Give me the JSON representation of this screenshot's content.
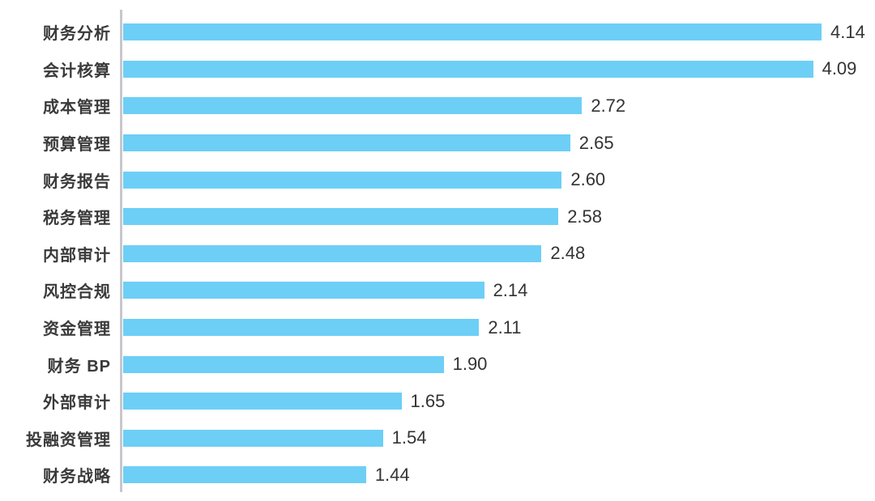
{
  "chart_data": {
    "type": "bar",
    "orientation": "horizontal",
    "title": "",
    "xlabel": "",
    "ylabel": "",
    "grid": false,
    "legend": false,
    "xlim": [
      0,
      4.14
    ],
    "categories": [
      "财务分析",
      "会计核算",
      "成本管理",
      "预算管理",
      "财务报告",
      "税务管理",
      "内部审计",
      "风控合规",
      "资金管理",
      "财务 BP",
      "外部审计",
      "投融资管理",
      "财务战略"
    ],
    "values": [
      4.14,
      4.09,
      2.72,
      2.65,
      2.6,
      2.58,
      2.48,
      2.14,
      2.11,
      1.9,
      1.65,
      1.54,
      1.44
    ],
    "value_labels": [
      "4.14",
      "4.09",
      "2.72",
      "2.65",
      "2.60",
      "2.58",
      "2.48",
      "2.14",
      "2.11",
      "1.90",
      "1.65",
      "1.54",
      "1.44"
    ],
    "colors": {
      "bar": "#6DCFF6",
      "axis_line": "#C7C7CC",
      "category_label": "#3A3A3A",
      "value_label": "#333333",
      "background": "#FFFFFF"
    }
  }
}
